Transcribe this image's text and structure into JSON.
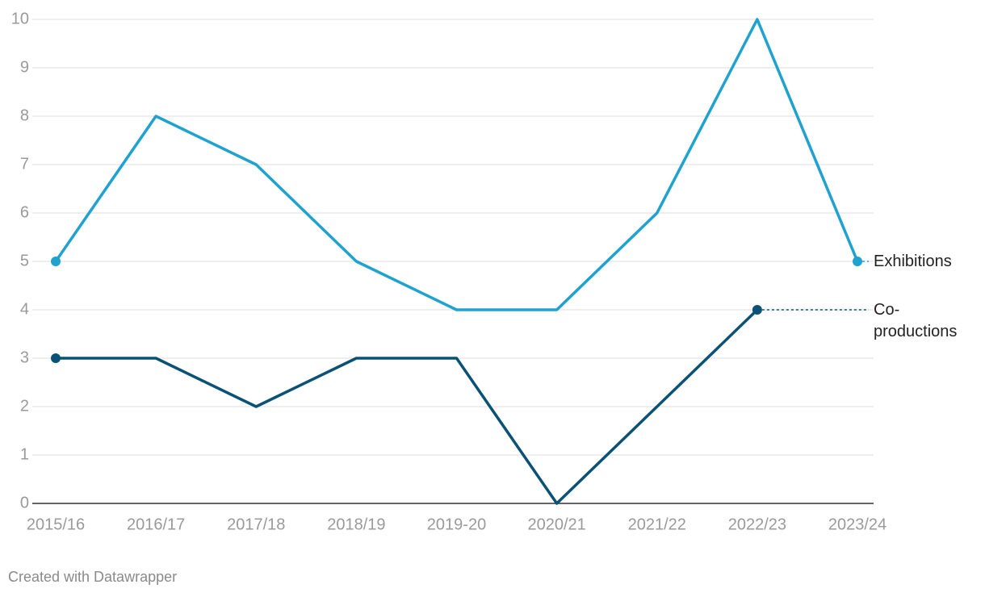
{
  "chart_data": {
    "type": "line",
    "categories": [
      "2015/16",
      "2016/17",
      "2017/18",
      "2018/19",
      "2019-20",
      "2020/21",
      "2021/22",
      "2022/23",
      "2023/24"
    ],
    "series": [
      {
        "name": "Exhibitions",
        "color": "#1fa2cf",
        "values": [
          5,
          8,
          7,
          5,
          4,
          4,
          6,
          10,
          5
        ]
      },
      {
        "name": "Co-productions",
        "color": "#0a5275",
        "values": [
          3,
          3,
          2,
          3,
          3,
          0,
          2,
          4,
          null
        ]
      }
    ],
    "ylim": [
      0,
      10
    ],
    "yticks": [
      0,
      1,
      2,
      3,
      4,
      5,
      6,
      7,
      8,
      9,
      10
    ],
    "grid": true,
    "credit": "Created with Datawrapper"
  }
}
